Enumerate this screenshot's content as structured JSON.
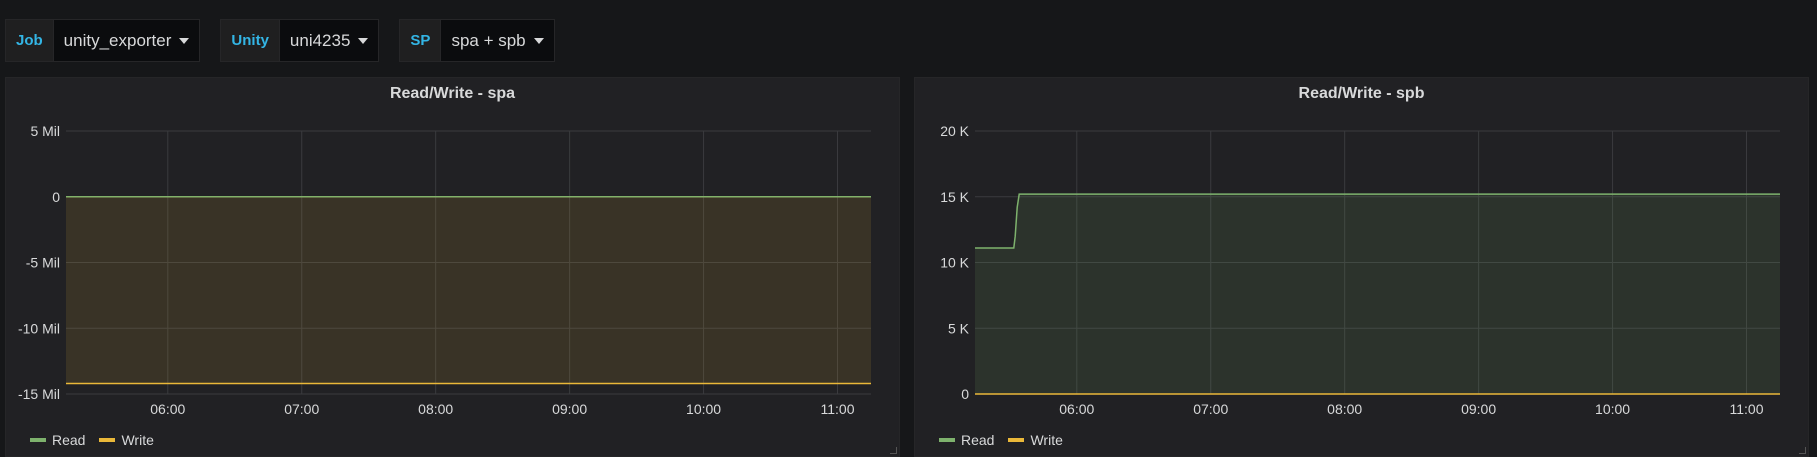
{
  "variables": [
    {
      "label": "Job",
      "value": "unity_exporter"
    },
    {
      "label": "Unity",
      "value": "uni4235"
    },
    {
      "label": "SP",
      "value": "spa + spb"
    }
  ],
  "colors": {
    "read": "#7eb26d",
    "write": "#eab839",
    "var_label": "#33b5e5"
  },
  "panels": [
    {
      "title": "Read/Write - spa",
      "legend": [
        "Read",
        "Write"
      ],
      "chart_data": {
        "type": "area",
        "x_ticks": [
          "06:00",
          "07:00",
          "08:00",
          "09:00",
          "10:00",
          "11:00"
        ],
        "y_ticks": [
          "5 Mil",
          "0",
          "-5 Mil",
          "-10 Mil",
          "-15 Mil"
        ],
        "ylim": [
          -15000000,
          5000000
        ],
        "x_range_hours": [
          5.24,
          11.25
        ],
        "series": [
          {
            "name": "Read",
            "points": [
              [
                5.24,
                0
              ],
              [
                11.25,
                0
              ]
            ]
          },
          {
            "name": "Write",
            "points": [
              [
                5.24,
                -14200000
              ],
              [
                11.25,
                -14200000
              ]
            ]
          }
        ]
      }
    },
    {
      "title": "Read/Write - spb",
      "legend": [
        "Read",
        "Write"
      ],
      "chart_data": {
        "type": "area",
        "x_ticks": [
          "06:00",
          "07:00",
          "08:00",
          "09:00",
          "10:00",
          "11:00"
        ],
        "y_ticks": [
          "20 K",
          "15 K",
          "10 K",
          "5 K",
          "0"
        ],
        "ylim": [
          0,
          20000
        ],
        "x_range_hours": [
          5.24,
          11.25
        ],
        "series": [
          {
            "name": "Read",
            "points": [
              [
                5.24,
                11100
              ],
              [
                5.53,
                11100
              ],
              [
                5.54,
                12000
              ],
              [
                5.555,
                14200
              ],
              [
                5.57,
                15200
              ],
              [
                11.25,
                15200
              ]
            ]
          },
          {
            "name": "Write",
            "points": [
              [
                5.24,
                0
              ],
              [
                11.25,
                0
              ]
            ]
          }
        ]
      }
    }
  ]
}
